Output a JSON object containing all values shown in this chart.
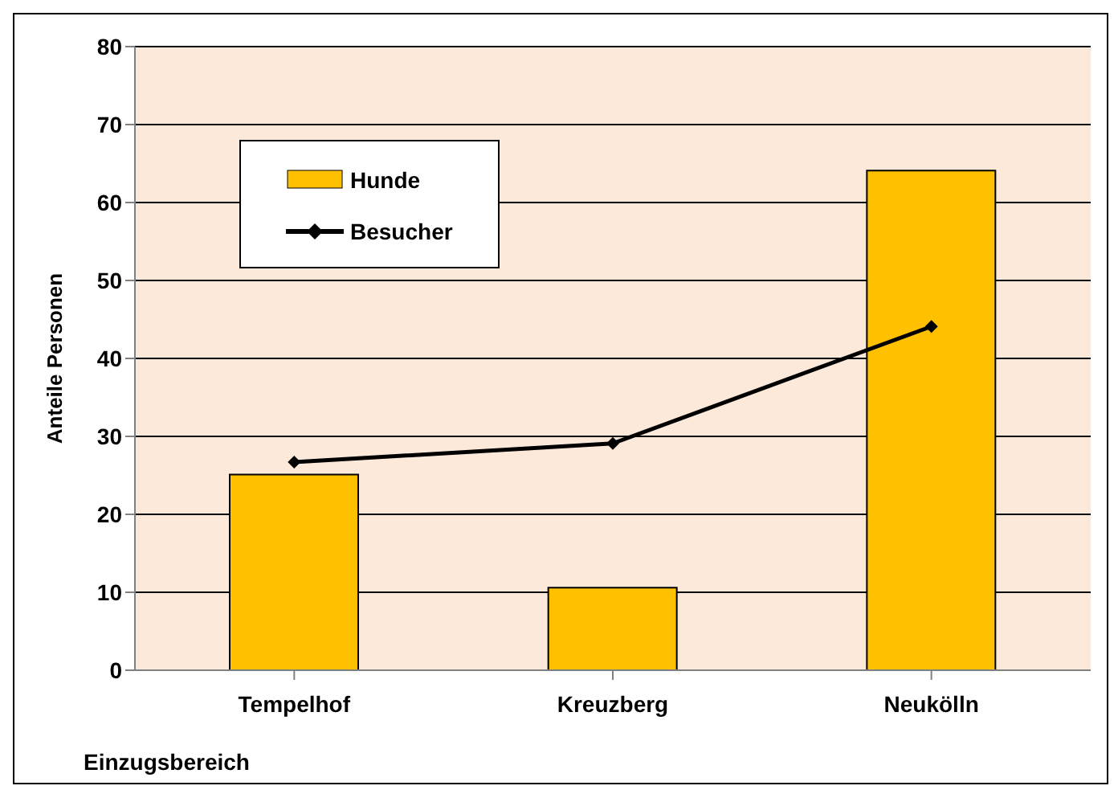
{
  "chart_data": {
    "type": "bar",
    "xlabel": "Einzugsbereich",
    "ylabel": "Anteile Personen",
    "categories": [
      "Tempelhof",
      "Kreuzberg",
      "Neukölln"
    ],
    "series": [
      {
        "name": "Hunde",
        "color": "#ffc000",
        "values": [
          25.1,
          10.6,
          64.1
        ]
      },
      {
        "name": "Besucher",
        "type": "line",
        "color": "#000000",
        "marker": "diamond",
        "values": [
          26.7,
          29.1,
          44.1
        ]
      }
    ],
    "ylim": [
      0,
      80
    ],
    "yticks": [
      0,
      10,
      20,
      30,
      40,
      50,
      60,
      70,
      80
    ],
    "grid": "y",
    "legend": "top left"
  }
}
